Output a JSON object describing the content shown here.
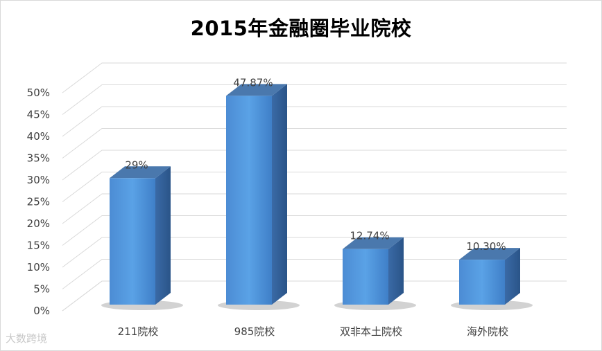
{
  "chart_data": {
    "type": "bar",
    "title": "2015年金融圈毕业院校",
    "categories": [
      "211院校",
      "985院校",
      "双非本土院校",
      "海外院校"
    ],
    "values": [
      29,
      47.87,
      12.74,
      10.3
    ],
    "data_labels": [
      "29%",
      "47.87%",
      "12.74%",
      "10.30%"
    ],
    "ylim": [
      0,
      50
    ],
    "yticks": [
      "0%",
      "5%",
      "10%",
      "15%",
      "20%",
      "25%",
      "30%",
      "35%",
      "40%",
      "45%",
      "50%"
    ],
    "grid": true,
    "style": "3d-column",
    "colors": {
      "bar_front": "#4f90d6",
      "bar_side": "#2f5f98",
      "bar_top": "#4a78ad",
      "grid": "#d9d9d9",
      "label": "#404040"
    }
  },
  "watermark": "大数跨境"
}
